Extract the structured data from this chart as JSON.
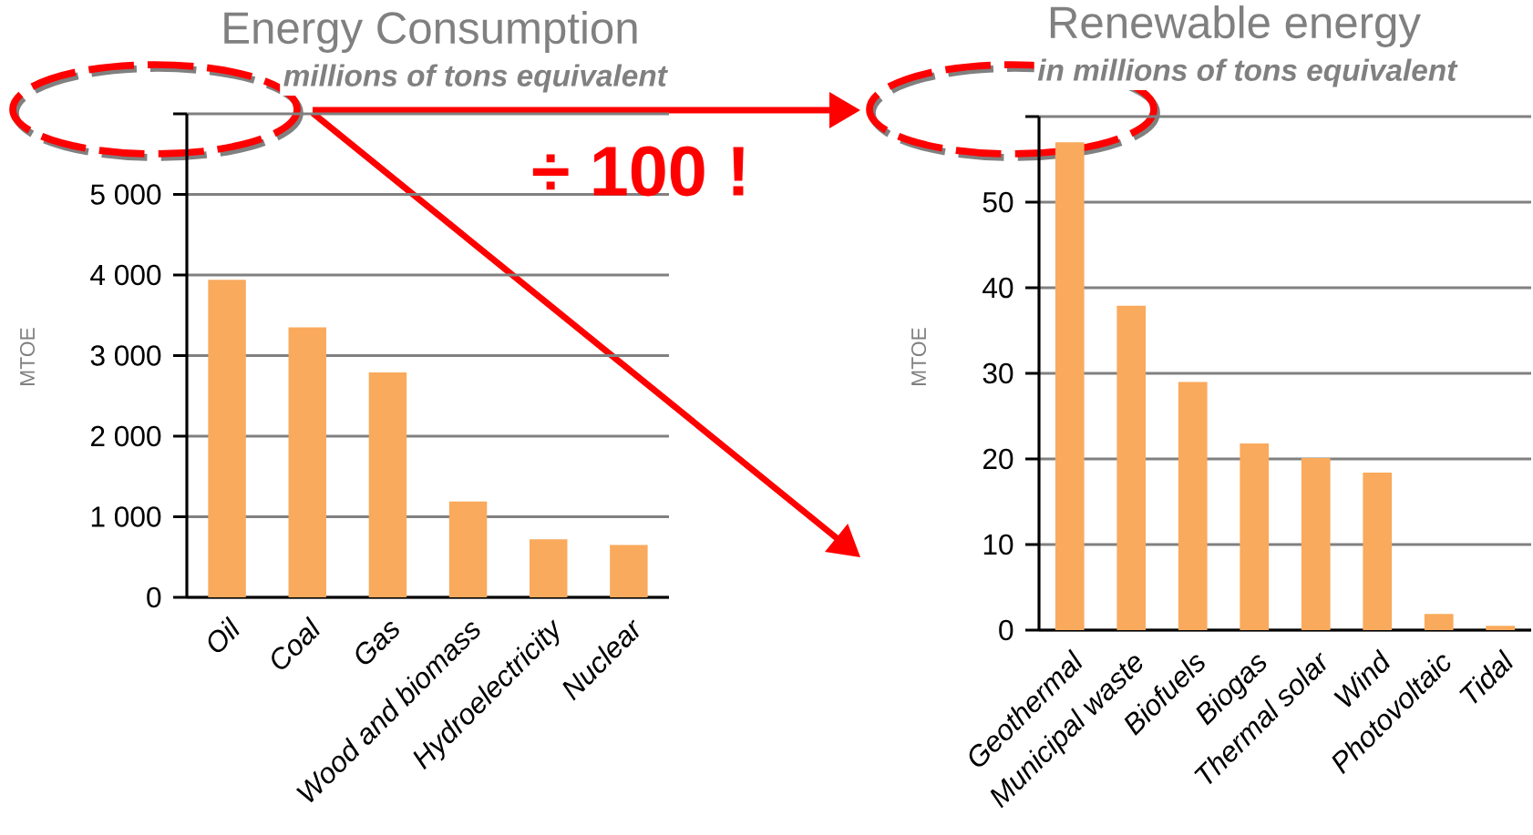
{
  "chart_data": [
    {
      "type": "bar",
      "title": "Energy Consumption",
      "subtitle": "millions of tons equivalent",
      "ylabel": "MTOE",
      "categories": [
        "Oil",
        "Coal",
        "Gas",
        "Wood and biomass",
        "Hydroelectricity",
        "Nuclear"
      ],
      "values": [
        3940,
        3350,
        2790,
        1190,
        720,
        650
      ],
      "color": "#f9aa5c",
      "ylim": [
        0,
        6000
      ],
      "yticks": [
        {
          "value": 0,
          "label": "0"
        },
        {
          "value": 1000,
          "label": "1 000"
        },
        {
          "value": 2000,
          "label": "2 000"
        },
        {
          "value": 3000,
          "label": "3 000"
        },
        {
          "value": 4000,
          "label": "4 000"
        },
        {
          "value": 5000,
          "label": "5 000"
        },
        {
          "value": 6000,
          "label": null
        }
      ],
      "grid": "y",
      "annotations": [
        "÷ 100 !"
      ]
    },
    {
      "type": "bar",
      "title": "Renewable energy",
      "subtitle": "in millions of tons equivalent",
      "ylabel": "MTOE",
      "categories": [
        "Geothermal",
        "Municipal waste",
        "Biofuels",
        "Biogas",
        "Thermal solar",
        "Wind",
        "Photovoltaic",
        "Tidal"
      ],
      "values": [
        57,
        37.9,
        29,
        21.8,
        20.1,
        18.4,
        1.9,
        0.5
      ],
      "color": "#f9aa5c",
      "ylim": [
        0,
        60
      ],
      "yticks": [
        0,
        10,
        20,
        30,
        40,
        50,
        {
          "value": 60,
          "label": null
        }
      ],
      "grid": "y"
    }
  ]
}
